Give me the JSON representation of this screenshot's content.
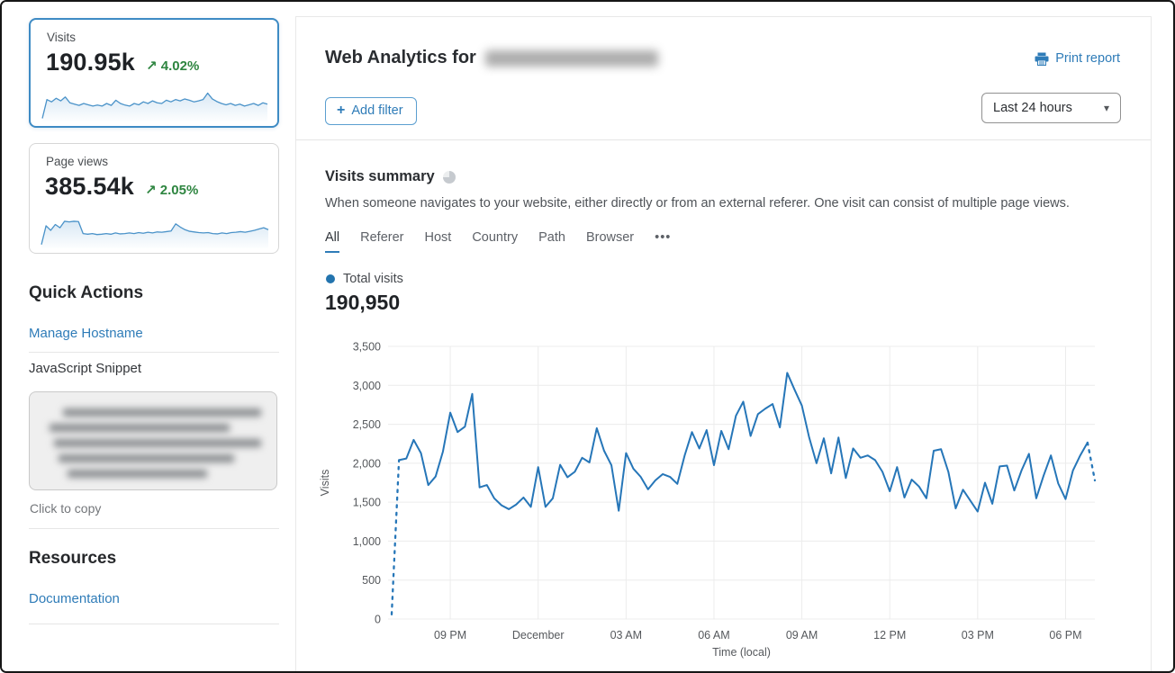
{
  "sidebar": {
    "cards": [
      {
        "label": "Visits",
        "value": "190.95k",
        "arrow": "↗",
        "delta": "4.02%",
        "selected": true,
        "sparkline": [
          4,
          62,
          55,
          66,
          58,
          70,
          52,
          48,
          44,
          50,
          46,
          42,
          45,
          42,
          50,
          44,
          60,
          50,
          45,
          42,
          50,
          46,
          55,
          50,
          58,
          52,
          50,
          60,
          55,
          62,
          58,
          64,
          60,
          55,
          58,
          62,
          82,
          64,
          56,
          50,
          46,
          50,
          44,
          48,
          42,
          46,
          50,
          44,
          52,
          48
        ]
      },
      {
        "label": "Page views",
        "value": "385.54k",
        "arrow": "↗",
        "delta": "2.05%",
        "selected": false,
        "sparkline": [
          6,
          64,
          50,
          68,
          58,
          78,
          76,
          78,
          77,
          40,
          38,
          40,
          37,
          38,
          40,
          38,
          42,
          39,
          40,
          42,
          40,
          43,
          41,
          44,
          42,
          45,
          44,
          46,
          48,
          70,
          60,
          52,
          47,
          45,
          43,
          42,
          43,
          40,
          39,
          42,
          40,
          43,
          44,
          46,
          44,
          47,
          50,
          54,
          58,
          52
        ]
      }
    ],
    "quick_actions": {
      "title": "Quick Actions",
      "manage_hostname": "Manage Hostname",
      "snippet_label": "JavaScript Snippet",
      "copy_hint": "Click to copy"
    },
    "resources": {
      "title": "Resources",
      "documentation": "Documentation"
    }
  },
  "header": {
    "title": "Web Analytics for",
    "print_label": "Print report",
    "add_filter_plus": "+",
    "add_filter_label": "Add filter",
    "time_range": "Last 24 hours",
    "time_range_caret": "▾"
  },
  "summary": {
    "title": "Visits summary",
    "description": "When someone navigates to your website, either directly or from an external referer. One visit can consist of multiple page views.",
    "tabs": [
      "All",
      "Referer",
      "Host",
      "Country",
      "Path",
      "Browser"
    ],
    "active_tab": "All",
    "more_tab": "•••",
    "legend_label": "Total visits",
    "total_value": "190,950"
  },
  "colors": {
    "accent_blue": "#2f7cb8",
    "line_blue": "#2676b8",
    "spark_blue": "#4b93c9",
    "spark_fill": "#d7e7f4",
    "green": "#2e8540",
    "grid": "#ececec",
    "axis_text": "#55585c"
  },
  "chart_data": {
    "type": "line",
    "title": "Visits summary — Total visits",
    "xlabel": "Time (local)",
    "ylabel": "Visits",
    "x_start": "7:00 PM",
    "x_interval_minutes": 15,
    "ylim": [
      0,
      3500
    ],
    "yticks": [
      0,
      500,
      1000,
      1500,
      2000,
      2500,
      3000,
      3500
    ],
    "ytick_labels": [
      "0",
      "500",
      "1,000",
      "1,500",
      "2,000",
      "2,500",
      "3,000",
      "3,500"
    ],
    "xticks": [
      {
        "label": "09 PM",
        "index": 8
      },
      {
        "label": "December",
        "index": 20
      },
      {
        "label": "03 AM",
        "index": 32
      },
      {
        "label": "06 AM",
        "index": 44
      },
      {
        "label": "09 AM",
        "index": 56
      },
      {
        "label": "12 PM",
        "index": 68
      },
      {
        "label": "03 PM",
        "index": 80
      },
      {
        "label": "06 PM",
        "index": 92
      }
    ],
    "grid": true,
    "legend_position": "top-left",
    "dashed_head_points": 2,
    "dashed_tail_points": 2,
    "series": [
      {
        "name": "Total visits",
        "color": "#2676b8",
        "values": [
          60,
          2040,
          2060,
          2300,
          2130,
          1720,
          1830,
          2150,
          2650,
          2400,
          2470,
          2890,
          1690,
          1720,
          1550,
          1460,
          1410,
          1470,
          1560,
          1440,
          1950,
          1440,
          1550,
          1980,
          1820,
          1890,
          2070,
          2010,
          2450,
          2160,
          1975,
          1390,
          2130,
          1930,
          1825,
          1665,
          1780,
          1860,
          1825,
          1735,
          2100,
          2400,
          2190,
          2425,
          1975,
          2415,
          2180,
          2610,
          2790,
          2350,
          2630,
          2700,
          2760,
          2460,
          3160,
          2945,
          2740,
          2330,
          2000,
          2320,
          1870,
          2330,
          1810,
          2190,
          2070,
          2100,
          2040,
          1890,
          1640,
          1950,
          1560,
          1790,
          1700,
          1550,
          2160,
          2180,
          1890,
          1420,
          1660,
          1520,
          1380,
          1750,
          1480,
          1960,
          1970,
          1650,
          1910,
          2120,
          1550,
          1840,
          2100,
          1740,
          1540,
          1905,
          2100,
          2265,
          1780
        ]
      }
    ]
  }
}
